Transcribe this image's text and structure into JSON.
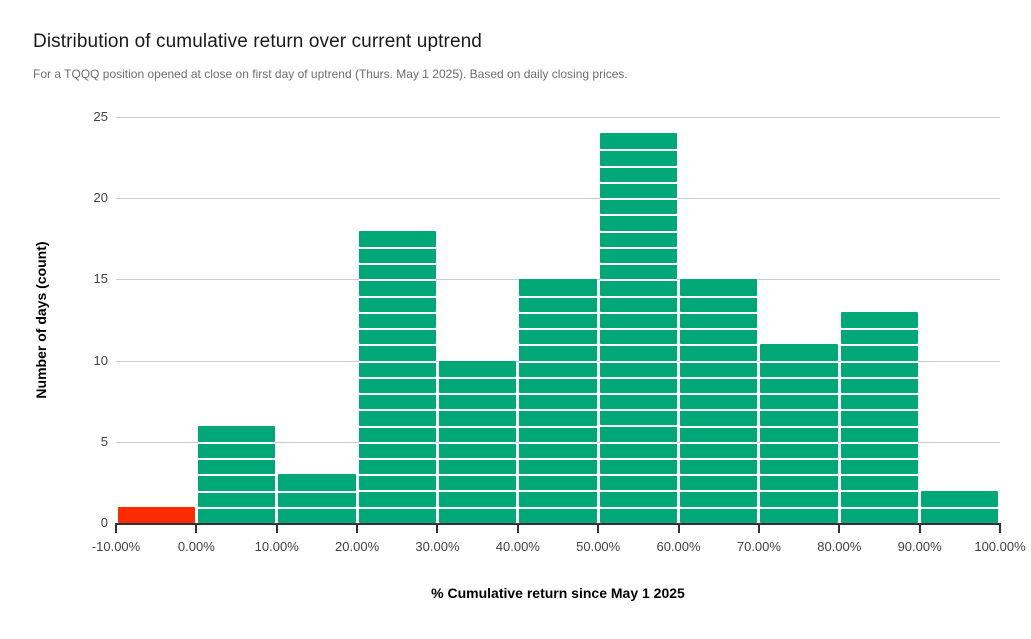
{
  "chart_data": {
    "type": "bar",
    "subtype": "histogram",
    "title": "Distribution of cumulative return over current uptrend",
    "subtitle": "For a TQQQ position opened at close on first day of uptrend (Thurs. May 1 2025). Based on daily closing prices.",
    "xlabel": "% Cumulative return since May 1 2025",
    "ylabel": "Number of days (count)",
    "categories": [
      "-10.00% to 0.00%",
      "0.00% to 10.00%",
      "10.00% to 20.00%",
      "20.00% to 30.00%",
      "30.00% to 40.00%",
      "40.00% to 50.00%",
      "50.00% to 60.00%",
      "60.00% to 70.00%",
      "70.00% to 80.00%",
      "80.00% to 90.00%",
      "90.00% to 100.00%"
    ],
    "values": [
      1,
      6,
      3,
      18,
      10,
      15,
      24,
      15,
      11,
      13,
      2
    ],
    "bar_colors": [
      "#FF2B00",
      "#00A878",
      "#00A878",
      "#00A878",
      "#00A878",
      "#00A878",
      "#00A878",
      "#00A878",
      "#00A878",
      "#00A878",
      "#00A878"
    ],
    "x_tick_labels": [
      "-10.00%",
      "0.00%",
      "10.00%",
      "20.00%",
      "30.00%",
      "40.00%",
      "50.00%",
      "60.00%",
      "70.00%",
      "80.00%",
      "90.00%",
      "100.00%"
    ],
    "y_ticks": [
      0,
      5,
      10,
      15,
      20,
      25
    ],
    "ylim": [
      0,
      25
    ],
    "grid": "horizontal-only",
    "legend_position": "none",
    "unit_segmented_bars": true,
    "colors": {
      "positive_bar": "#00A878",
      "negative_bar": "#FF2B00",
      "gridline": "#cccccc",
      "axis_line": "#333333",
      "tick_label": "#424242",
      "subtitle_text": "#6e6e6e"
    }
  }
}
